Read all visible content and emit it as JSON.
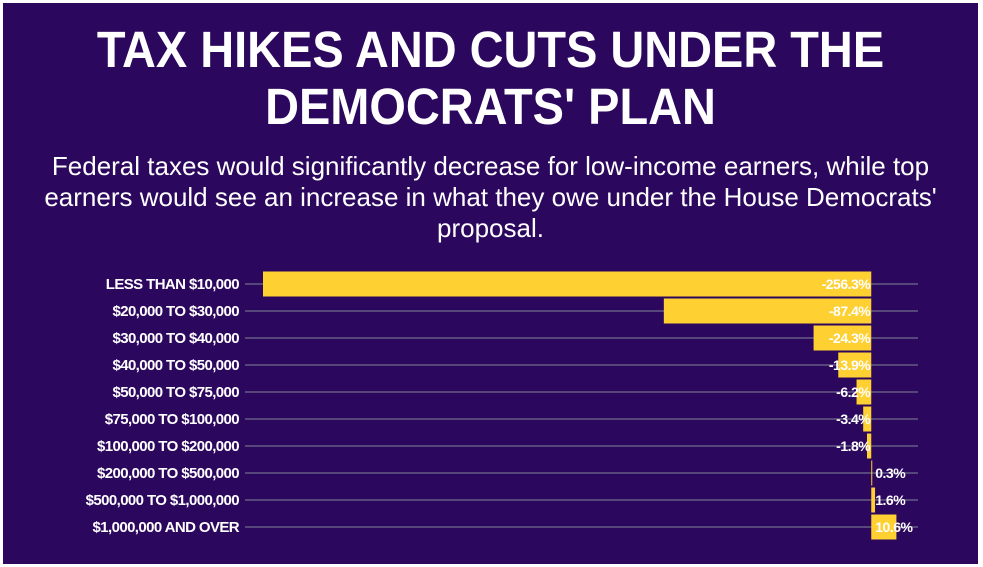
{
  "title": "TAX HIKES AND CUTS UNDER THE DEMOCRATS' PLAN",
  "subtitle": "Federal taxes would significantly decrease for low-income earners, while top earners would see an increase in what they owe under the House Democrats' proposal.",
  "colors": {
    "background": "#2c075e",
    "bar": "#ffd031",
    "gridline": "#6f6d8f",
    "text": "#ffffff"
  },
  "chart_data": {
    "type": "bar",
    "orientation": "horizontal",
    "categories": [
      "LESS THAN $10,000",
      "$20,000 TO $30,000",
      "$30,000 TO $40,000",
      "$40,000 TO $50,000",
      "$50,000 TO $75,000",
      "$75,000 TO $100,000",
      "$100,000 TO $200,000",
      "$200,000 TO $500,000",
      "$500,000 TO $1,000,000",
      "$1,000,000 AND OVER"
    ],
    "values": [
      -256.3,
      -87.4,
      -24.3,
      -13.9,
      -6.2,
      -3.4,
      -1.8,
      0.3,
      1.6,
      10.6
    ],
    "value_labels": [
      "-256.3%",
      "-87.4%",
      "-24.3%",
      "-13.9%",
      "-6.2%",
      "-3.4%",
      "-1.8%",
      "0.3%",
      "1.6%",
      "10.6%"
    ],
    "title": "TAX HIKES AND CUTS UNDER THE DEMOCRATS' PLAN",
    "xlabel": "",
    "ylabel": "",
    "xlim": [
      -256.3,
      19.7
    ],
    "grid": true,
    "legend": "none"
  }
}
